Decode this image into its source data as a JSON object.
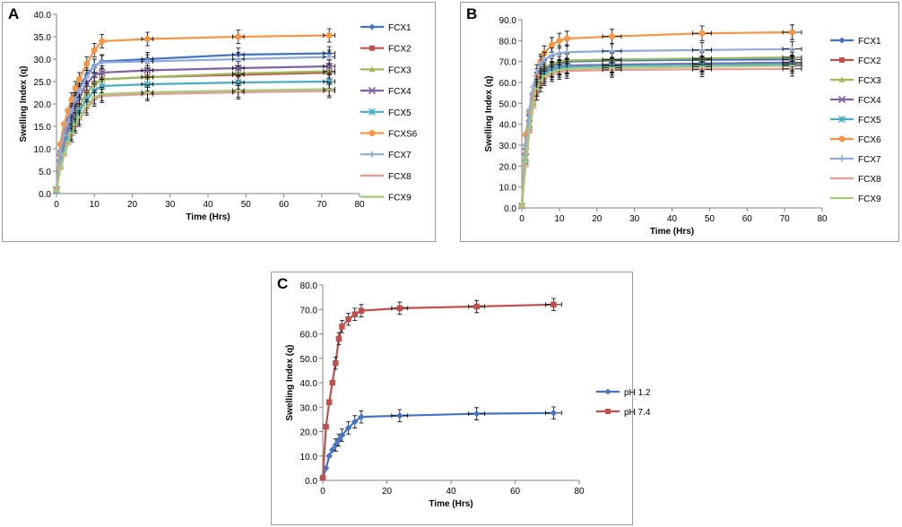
{
  "chart_data": [
    {
      "panel_label": "A",
      "type": "line",
      "title": "",
      "xlabel": "Time (Hrs)",
      "ylabel": "Swelling Index (q)",
      "xlim": [
        0,
        80
      ],
      "ylim": [
        0,
        40
      ],
      "xticks": [
        0,
        10,
        20,
        30,
        40,
        50,
        60,
        70,
        80
      ],
      "yticks": [
        0,
        5,
        10,
        15,
        20,
        25,
        30,
        35,
        40
      ],
      "ytick_format": 1,
      "legend_position": "right",
      "x": [
        0,
        1,
        2,
        3,
        4,
        5,
        6,
        8,
        10,
        12,
        24,
        48,
        72
      ],
      "series": [
        {
          "name": "FCX1",
          "color": "#4472C4",
          "marker": "diamond",
          "values": [
            1.0,
            9.5,
            13.5,
            16.5,
            19.0,
            21.5,
            23.5,
            26.5,
            28.5,
            29.5,
            30.0,
            31.0,
            31.3
          ]
        },
        {
          "name": "FCX2",
          "color": "#C0504D",
          "marker": "square",
          "values": [
            0.8,
            7.0,
            10.5,
            13.5,
            15.5,
            17.5,
            19.5,
            22.5,
            24.5,
            25.5,
            26.0,
            26.5,
            27.0
          ]
        },
        {
          "name": "FCX3",
          "color": "#9BBB59",
          "marker": "triangle",
          "values": [
            0.8,
            7.0,
            10.5,
            13.5,
            15.5,
            17.5,
            19.5,
            22.5,
            24.5,
            25.5,
            26.0,
            26.8,
            27.3
          ]
        },
        {
          "name": "FCX4",
          "color": "#8064A2",
          "marker": "x",
          "values": [
            0.9,
            8.0,
            11.5,
            14.5,
            17.0,
            19.5,
            21.5,
            24.5,
            26.5,
            27.0,
            27.5,
            28.0,
            28.4
          ]
        },
        {
          "name": "FCX5",
          "color": "#4BACC6",
          "marker": "star",
          "values": [
            0.7,
            6.5,
            9.5,
            12.5,
            14.5,
            16.5,
            18.5,
            21.0,
            23.0,
            24.0,
            24.4,
            24.8,
            25.0
          ]
        },
        {
          "name": "FCXS6",
          "color": "#F79646",
          "marker": "circle",
          "values": [
            1.0,
            11.0,
            15.5,
            18.5,
            21.0,
            23.5,
            25.5,
            29.0,
            32.0,
            34.0,
            34.5,
            35.0,
            35.3
          ]
        },
        {
          "name": "FCX7",
          "color": "#8EA9DB",
          "marker": "plus",
          "values": [
            1.0,
            9.0,
            13.0,
            16.0,
            18.5,
            21.0,
            23.0,
            26.0,
            28.5,
            29.3,
            29.5,
            30.0,
            30.5
          ]
        },
        {
          "name": "FCX8",
          "color": "#E59A95",
          "marker": "dash",
          "values": [
            0.5,
            5.5,
            8.5,
            11.0,
            13.0,
            15.0,
            16.5,
            19.0,
            21.0,
            21.8,
            22.2,
            22.6,
            22.9
          ]
        },
        {
          "name": "FCX9",
          "color": "#A9C97A",
          "marker": "dash",
          "values": [
            0.5,
            5.8,
            8.8,
            11.5,
            13.5,
            15.5,
            17.0,
            19.5,
            21.5,
            22.2,
            22.6,
            23.0,
            23.3
          ]
        }
      ],
      "error_y": 1.5,
      "error_x": 1.5
    },
    {
      "panel_label": "B",
      "type": "line",
      "title": "",
      "xlabel": "Time (Hrs)",
      "ylabel": "Swelling Index (q)",
      "xlim": [
        0,
        80
      ],
      "ylim": [
        0,
        90
      ],
      "xticks": [
        0,
        10,
        20,
        30,
        40,
        50,
        60,
        70,
        80
      ],
      "yticks": [
        0,
        10,
        20,
        30,
        40,
        50,
        60,
        70,
        80,
        90
      ],
      "ytick_format": 1,
      "legend_position": "right",
      "x": [
        0,
        1,
        2,
        3,
        4,
        5,
        6,
        8,
        10,
        12,
        24,
        48,
        72
      ],
      "series": [
        {
          "name": "FCX1",
          "color": "#4472C4",
          "marker": "diamond",
          "values": [
            1.0,
            30.0,
            45.0,
            55.0,
            61.0,
            64.0,
            66.0,
            68.0,
            69.0,
            70.0,
            70.5,
            70.8,
            71.0
          ]
        },
        {
          "name": "FCX2",
          "color": "#C0504D",
          "marker": "square",
          "values": [
            1.0,
            22.0,
            38.0,
            50.0,
            57.0,
            61.0,
            64.0,
            66.0,
            67.0,
            68.0,
            68.5,
            69.0,
            69.5
          ]
        },
        {
          "name": "FCX3",
          "color": "#9BBB59",
          "marker": "triangle",
          "values": [
            1.0,
            25.0,
            42.0,
            54.0,
            61.0,
            65.0,
            67.0,
            69.0,
            70.0,
            70.5,
            71.0,
            71.5,
            72.0
          ]
        },
        {
          "name": "FCX4",
          "color": "#8064A2",
          "marker": "x",
          "values": [
            1.0,
            27.0,
            43.0,
            53.0,
            59.0,
            63.0,
            65.0,
            66.5,
            67.5,
            68.0,
            68.5,
            69.0,
            69.5
          ]
        },
        {
          "name": "FCX5",
          "color": "#4BACC6",
          "marker": "star",
          "values": [
            1.0,
            24.0,
            40.0,
            51.0,
            58.0,
            62.0,
            64.0,
            66.0,
            67.0,
            67.5,
            68.0,
            68.5,
            68.8
          ]
        },
        {
          "name": "FCX6",
          "color": "#F79646",
          "marker": "circle",
          "values": [
            1.0,
            35.0,
            46.0,
            53.0,
            63.0,
            70.0,
            74.0,
            78.0,
            80.0,
            81.0,
            82.0,
            83.5,
            84.0
          ]
        },
        {
          "name": "FCX7",
          "color": "#8EA9DB",
          "marker": "plus",
          "values": [
            1.0,
            30.0,
            47.0,
            58.0,
            65.0,
            69.0,
            71.0,
            73.0,
            74.0,
            74.5,
            75.0,
            75.5,
            76.0
          ]
        },
        {
          "name": "FCX8",
          "color": "#E59A95",
          "marker": "dash",
          "values": [
            1.0,
            20.0,
            36.0,
            48.0,
            55.0,
            59.0,
            62.0,
            64.0,
            65.0,
            65.5,
            66.0,
            66.3,
            66.5
          ]
        },
        {
          "name": "FCX9",
          "color": "#A9C97A",
          "marker": "dash",
          "values": [
            1.0,
            22.0,
            38.0,
            50.0,
            57.0,
            61.0,
            63.0,
            65.0,
            66.0,
            66.5,
            67.0,
            67.5,
            68.0
          ]
        }
      ],
      "error_y": 3.5,
      "error_x": 2.5
    },
    {
      "panel_label": "C",
      "type": "line",
      "title": "",
      "xlabel": "Time (Hrs)",
      "ylabel": "Swelling Index (q)",
      "xlim": [
        0,
        80
      ],
      "ylim": [
        0,
        80
      ],
      "xticks": [
        0,
        20,
        40,
        60,
        80
      ],
      "yticks": [
        0,
        10,
        20,
        30,
        40,
        50,
        60,
        70,
        80
      ],
      "ytick_format": 1,
      "legend_position": "right",
      "x": [
        0,
        1,
        2,
        3,
        4,
        5,
        6,
        8,
        10,
        12,
        24,
        48,
        72
      ],
      "series": [
        {
          "name": "pH 1.2",
          "color": "#4472C4",
          "marker": "diamond",
          "values": [
            1.0,
            5.0,
            10.0,
            12.5,
            14.5,
            16.5,
            18.5,
            21.5,
            24.0,
            26.0,
            26.5,
            27.3,
            27.6
          ]
        },
        {
          "name": "pH 7.4",
          "color": "#C0504D",
          "marker": "square",
          "values": [
            1.0,
            22.0,
            32.0,
            40.0,
            48.0,
            58.0,
            63.0,
            66.0,
            68.0,
            69.5,
            70.5,
            71.2,
            72.0
          ]
        }
      ],
      "error_y": 2.5,
      "error_x": 2.5
    }
  ]
}
